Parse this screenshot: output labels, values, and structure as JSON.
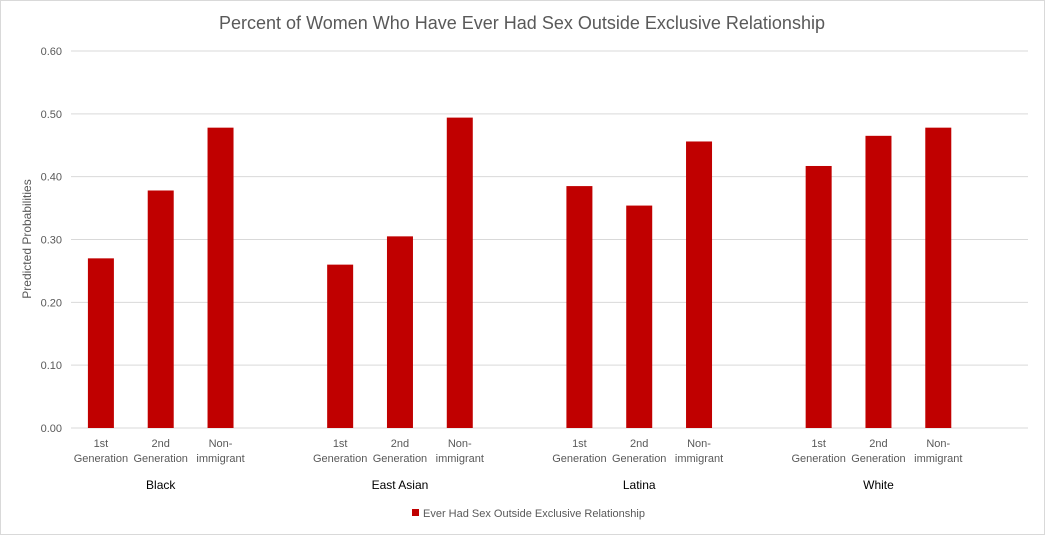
{
  "chart_data": {
    "type": "bar",
    "title": "Percent of Women Who Have Ever Had Sex Outside Exclusive Relationship",
    "xlabel": "",
    "ylabel": "Predicted Probabilities",
    "ylim": [
      0,
      0.6
    ],
    "yticks": [
      "0.00",
      "0.10",
      "0.20",
      "0.30",
      "0.40",
      "0.50",
      "0.60"
    ],
    "grid": true,
    "legend_position": "bottom",
    "groups": [
      "Black",
      "East Asian",
      "Latina",
      "White"
    ],
    "subcategories": [
      [
        "1st",
        "Generation"
      ],
      [
        "2nd",
        "Generation"
      ],
      [
        "Non-",
        "immigrant"
      ]
    ],
    "series": [
      {
        "name": "Ever Had Sex Outside Exclusive Relationship",
        "color": "#c00000",
        "values": [
          [
            0.27,
            0.378,
            0.478
          ],
          [
            0.26,
            0.305,
            0.494
          ],
          [
            0.385,
            0.354,
            0.456
          ],
          [
            0.417,
            0.465,
            0.478
          ]
        ]
      }
    ]
  }
}
